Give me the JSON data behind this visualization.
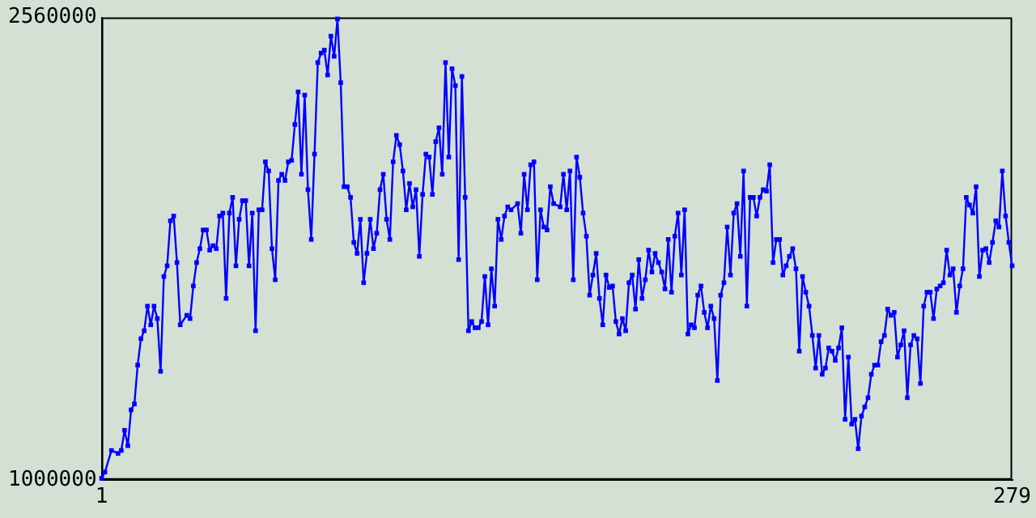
{
  "chart_data": {
    "type": "line",
    "xlim": [
      1,
      279
    ],
    "xticks": [
      1,
      279
    ],
    "ylim": [
      1000000,
      2560000
    ],
    "yticks": [
      1000000,
      2560000
    ],
    "grid": false,
    "legend": false,
    "marker": "square",
    "line_style": "solid",
    "series": [
      {
        "color": "#0000ff",
        "x": [
          1,
          2,
          4,
          6,
          7,
          8,
          9,
          10,
          11,
          12,
          13,
          14,
          15,
          16,
          17,
          18,
          19,
          20,
          21,
          22,
          23,
          24,
          25,
          27,
          28,
          29,
          30,
          31,
          32,
          33,
          34,
          35,
          36,
          37,
          38,
          39,
          40,
          41,
          42,
          43,
          44,
          45,
          46,
          47,
          48,
          49,
          50,
          51,
          52,
          53,
          54,
          55,
          56,
          57,
          58,
          59,
          60,
          61,
          62,
          63,
          64,
          65,
          66,
          67,
          68,
          69,
          70,
          71,
          72,
          73,
          74,
          75,
          76,
          77,
          78,
          79,
          80,
          81,
          82,
          83,
          84,
          85,
          86,
          87,
          88,
          89,
          90,
          91,
          92,
          93,
          94,
          95,
          96,
          97,
          98,
          99,
          100,
          101,
          102,
          103,
          104,
          105,
          106,
          107,
          108,
          109,
          110,
          111,
          112,
          113,
          114,
          115,
          116,
          117,
          118,
          119,
          120,
          121,
          122,
          123,
          124,
          125,
          126,
          128,
          129,
          130,
          131,
          132,
          133,
          134,
          135,
          136,
          137,
          138,
          139,
          141,
          142,
          143,
          144,
          145,
          146,
          147,
          148,
          149,
          150,
          151,
          152,
          153,
          154,
          155,
          156,
          157,
          158,
          159,
          160,
          161,
          162,
          163,
          164,
          165,
          166,
          167,
          168,
          169,
          170,
          171,
          172,
          173,
          174,
          175,
          176,
          177,
          178,
          179,
          180,
          181,
          182,
          183,
          184,
          185,
          186,
          187,
          188,
          189,
          190,
          191,
          192,
          193,
          194,
          195,
          196,
          197,
          198,
          199,
          200,
          201,
          202,
          203,
          204,
          205,
          206,
          207,
          208,
          209,
          210,
          211,
          212,
          213,
          214,
          215,
          216,
          217,
          218,
          219,
          220,
          221,
          222,
          223,
          224,
          225,
          226,
          227,
          228,
          229,
          230,
          231,
          232,
          233,
          234,
          235,
          236,
          237,
          238,
          239,
          240,
          241,
          242,
          243,
          244,
          245,
          246,
          247,
          248,
          249,
          250,
          251,
          252,
          253,
          254,
          255,
          256,
          257,
          258,
          259,
          260,
          261,
          262,
          263,
          264,
          265,
          266,
          267,
          268,
          269,
          270,
          271,
          272,
          273,
          274,
          275,
          276,
          277,
          278,
          279
        ],
        "values": [
          1005000,
          1026000,
          1099000,
          1089000,
          1099000,
          1167000,
          1115000,
          1236000,
          1256000,
          1387000,
          1476000,
          1503000,
          1586000,
          1523000,
          1586000,
          1544000,
          1366000,
          1686000,
          1722000,
          1874000,
          1890000,
          1733000,
          1523000,
          1555000,
          1544000,
          1654000,
          1733000,
          1780000,
          1843000,
          1843000,
          1775000,
          1790000,
          1780000,
          1890000,
          1900000,
          1612000,
          1900000,
          1953000,
          1722000,
          1879000,
          1942000,
          1942000,
          1722000,
          1900000,
          1503000,
          1911000,
          1911000,
          2073000,
          2042000,
          1780000,
          1675000,
          2010000,
          2031000,
          2010000,
          2073000,
          2078000,
          2199000,
          2309000,
          2031000,
          2298000,
          1979000,
          1811000,
          2099000,
          2408000,
          2440000,
          2450000,
          2366000,
          2497000,
          2429000,
          2555000,
          2340000,
          1989000,
          1989000,
          1953000,
          1801000,
          1764000,
          1879000,
          1665000,
          1764000,
          1879000,
          1780000,
          1832000,
          1979000,
          2031000,
          1879000,
          1811000,
          2073000,
          2162000,
          2131000,
          2042000,
          1911000,
          2000000,
          1921000,
          1979000,
          1754000,
          1963000,
          2099000,
          2089000,
          1963000,
          2141000,
          2188000,
          2031000,
          2408000,
          2089000,
          2387000,
          2330000,
          1743000,
          2361000,
          1953000,
          1503000,
          1534000,
          1513000,
          1513000,
          1534000,
          1686000,
          1523000,
          1712000,
          1586000,
          1879000,
          1811000,
          1890000,
          1921000,
          1911000,
          1932000,
          1832000,
          2031000,
          1911000,
          2063000,
          2073000,
          1675000,
          1911000,
          1853000,
          1843000,
          1989000,
          1932000,
          1921000,
          2031000,
          1911000,
          2042000,
          1675000,
          2089000,
          2021000,
          1900000,
          1822000,
          1623000,
          1691000,
          1764000,
          1612000,
          1523000,
          1691000,
          1649000,
          1654000,
          1534000,
          1492000,
          1544000,
          1503000,
          1665000,
          1691000,
          1576000,
          1743000,
          1612000,
          1675000,
          1775000,
          1701000,
          1764000,
          1733000,
          1701000,
          1644000,
          1811000,
          1633000,
          1822000,
          1900000,
          1691000,
          1911000,
          1492000,
          1523000,
          1513000,
          1623000,
          1654000,
          1565000,
          1513000,
          1586000,
          1544000,
          1335000,
          1623000,
          1665000,
          1853000,
          1691000,
          1900000,
          1932000,
          1754000,
          2042000,
          1586000,
          1953000,
          1953000,
          1890000,
          1953000,
          1979000,
          1974000,
          2063000,
          1733000,
          1811000,
          1811000,
          1691000,
          1722000,
          1754000,
          1780000,
          1712000,
          1434000,
          1686000,
          1633000,
          1586000,
          1487000,
          1377000,
          1487000,
          1356000,
          1377000,
          1445000,
          1434000,
          1403000,
          1445000,
          1513000,
          1204000,
          1414000,
          1188000,
          1204000,
          1105000,
          1215000,
          1246000,
          1277000,
          1356000,
          1387000,
          1387000,
          1466000,
          1487000,
          1576000,
          1555000,
          1565000,
          1414000,
          1455000,
          1503000,
          1277000,
          1455000,
          1487000,
          1476000,
          1325000,
          1586000,
          1633000,
          1633000,
          1544000,
          1644000,
          1654000,
          1665000,
          1775000,
          1691000,
          1712000,
          1565000,
          1654000,
          1712000,
          1953000,
          1927000,
          1900000,
          1989000,
          1686000,
          1775000,
          1780000,
          1733000,
          1801000,
          1874000,
          1853000,
          2042000,
          1890000,
          1801000,
          1722000
        ]
      }
    ]
  }
}
